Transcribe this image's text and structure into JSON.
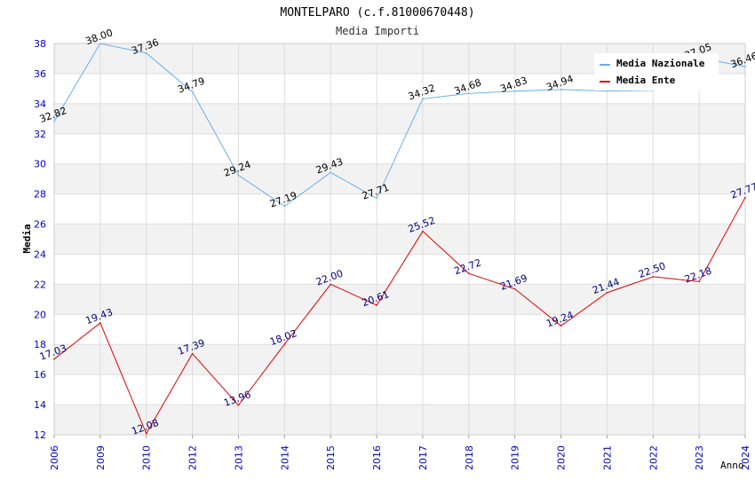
{
  "chart_data": {
    "type": "line",
    "title": "MONTELPARO (c.f.81000670448)",
    "subtitle": "Media Importi",
    "xlabel": "Anno",
    "ylabel": "Media",
    "ylim": [
      12,
      38
    ],
    "yticks": [
      "12",
      "14",
      "16",
      "18",
      "20",
      "22",
      "24",
      "26",
      "28",
      "30",
      "32",
      "34",
      "36",
      "38"
    ],
    "categories": [
      "2006",
      "2009",
      "2010",
      "2012",
      "2013",
      "2014",
      "2015",
      "2016",
      "2017",
      "2018",
      "2019",
      "2020",
      "2021",
      "2022",
      "2023",
      "2024"
    ],
    "legend_position": "top-right",
    "series": [
      {
        "name": "Media Nazionale",
        "color": "#6aaee8",
        "label_color": "#000000",
        "values": [
          32.82,
          38.0,
          37.36,
          34.79,
          29.24,
          27.19,
          29.43,
          27.71,
          34.32,
          34.68,
          34.83,
          34.94,
          34.84,
          34.88,
          37.05,
          36.46
        ],
        "labels": [
          "32.82",
          "38.00",
          "37.36",
          "34.79",
          "29.24",
          "27.19",
          "29.43",
          "27.71",
          "34.32",
          "34.68",
          "34.83",
          "34.94",
          "",
          "",
          "37.05",
          "36.46"
        ]
      },
      {
        "name": "Media Ente",
        "color": "#e00000",
        "label_color": "#000080",
        "values": [
          17.03,
          19.43,
          12.08,
          17.39,
          13.96,
          18.02,
          22.0,
          20.61,
          25.52,
          22.72,
          21.69,
          19.24,
          21.44,
          22.5,
          22.18,
          27.77
        ],
        "labels": [
          "17.03",
          "19.43",
          "12.08",
          "17.39",
          "13.96",
          "18.02",
          "22.00",
          "20.61",
          "25.52",
          "22.72",
          "21.69",
          "19.24",
          "21.44",
          "22.50",
          "22.18",
          "27.77"
        ]
      }
    ]
  },
  "colors": {
    "band": "#f2f2f2",
    "grid": "#dddddd",
    "axis_tick_text": "#0000cc",
    "title_text": "#000000",
    "subtitle_text": "#333333"
  }
}
